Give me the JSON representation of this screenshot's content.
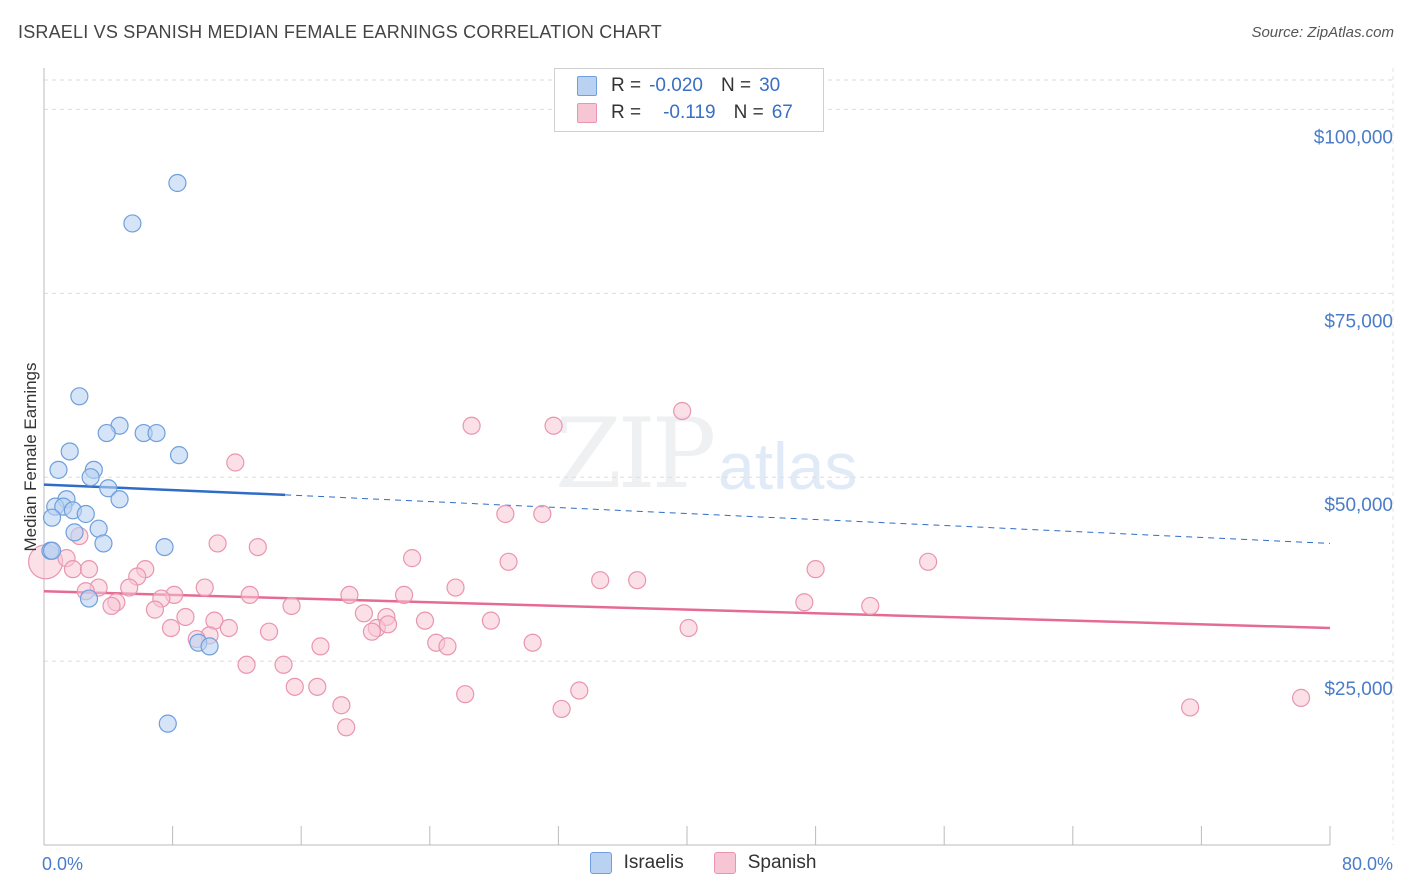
{
  "header": {
    "title": "ISRAELI VS SPANISH MEDIAN FEMALE EARNINGS CORRELATION CHART",
    "source": "Source: ZipAtlas.com"
  },
  "watermark": {
    "zip": "ZIP",
    "atlas": "atlas"
  },
  "legend": {
    "rows": [
      {
        "r_label": "R =",
        "r_value": "-0.020",
        "n_label": "N =",
        "n_value": "30"
      },
      {
        "r_label": "R =",
        "r_value": "-0.119",
        "n_label": "N =",
        "n_value": "67"
      }
    ]
  },
  "bottom_legend": {
    "israelis": "Israelis",
    "spanish": "Spanish"
  },
  "colors": {
    "israelis_fill": "#b9d2f2",
    "israelis_stroke": "#6f9fdc",
    "israelis_line": "#2f6cc8",
    "spanish_fill": "#f7c6d5",
    "spanish_stroke": "#e995b0",
    "spanish_line": "#e56b93",
    "axis_text": "#4a7cc7"
  },
  "chart_data": {
    "type": "scatter",
    "title": "ISRAELI VS SPANISH MEDIAN FEMALE EARNINGS CORRELATION CHART",
    "xlabel": "",
    "ylabel": "Median Female Earnings",
    "xlim": [
      0,
      80
    ],
    "ylim": [
      0,
      105000
    ],
    "x_tick_labels": {
      "min": "0.0%",
      "max": "80.0%"
    },
    "y_ticks": [
      {
        "value": 25000,
        "label": "$25,000"
      },
      {
        "value": 50000,
        "label": "$50,000"
      },
      {
        "value": 75000,
        "label": "$75,000"
      },
      {
        "value": 100000,
        "label": "$100,000"
      }
    ],
    "series": [
      {
        "name": "Israelis",
        "r": -0.02,
        "n": 30,
        "trend": {
          "x0": 0,
          "y0": 49000,
          "x1": 15,
          "y1": 47600,
          "dash_to_x": 80,
          "dash_to_y": 41000
        },
        "points": [
          [
            8.3,
            90000
          ],
          [
            5.5,
            84500
          ],
          [
            2.2,
            61000
          ],
          [
            4.7,
            57000
          ],
          [
            3.9,
            56000
          ],
          [
            6.2,
            56000
          ],
          [
            7.0,
            56000
          ],
          [
            1.6,
            53500
          ],
          [
            8.4,
            53000
          ],
          [
            0.9,
            51000
          ],
          [
            3.1,
            51000
          ],
          [
            2.9,
            50000
          ],
          [
            4.0,
            48500
          ],
          [
            4.7,
            47000
          ],
          [
            1.4,
            47000
          ],
          [
            0.7,
            46000
          ],
          [
            1.2,
            46000
          ],
          [
            1.8,
            45500
          ],
          [
            2.6,
            45000
          ],
          [
            0.5,
            44500
          ],
          [
            3.4,
            43000
          ],
          [
            1.9,
            42500
          ],
          [
            3.7,
            41000
          ],
          [
            7.5,
            40500
          ],
          [
            0.4,
            40000
          ],
          [
            2.8,
            33500
          ],
          [
            9.6,
            27500
          ],
          [
            10.3,
            27000
          ],
          [
            7.7,
            16500
          ],
          [
            0.5,
            40000
          ]
        ]
      },
      {
        "name": "Spanish",
        "r": -0.119,
        "n": 67,
        "trend": {
          "x0": 0,
          "y0": 34500,
          "x1": 80,
          "y1": 29500
        },
        "points": [
          [
            0.1,
            38500
          ],
          [
            39.7,
            59000
          ],
          [
            26.6,
            57000
          ],
          [
            31.7,
            57000
          ],
          [
            11.9,
            52000
          ],
          [
            2.2,
            42000
          ],
          [
            10.8,
            41000
          ],
          [
            13.3,
            40500
          ],
          [
            28.7,
            45000
          ],
          [
            31.0,
            45000
          ],
          [
            1.4,
            39000
          ],
          [
            22.9,
            39000
          ],
          [
            28.9,
            38500
          ],
          [
            55.0,
            38500
          ],
          [
            1.8,
            37500
          ],
          [
            2.8,
            37500
          ],
          [
            6.3,
            37500
          ],
          [
            48.0,
            37500
          ],
          [
            5.8,
            36500
          ],
          [
            34.6,
            36000
          ],
          [
            36.9,
            36000
          ],
          [
            3.4,
            35000
          ],
          [
            5.3,
            35000
          ],
          [
            10.0,
            35000
          ],
          [
            25.6,
            35000
          ],
          [
            2.6,
            34500
          ],
          [
            8.1,
            34000
          ],
          [
            12.8,
            34000
          ],
          [
            19.0,
            34000
          ],
          [
            22.4,
            34000
          ],
          [
            7.3,
            33500
          ],
          [
            4.5,
            33000
          ],
          [
            47.3,
            33000
          ],
          [
            51.4,
            32500
          ],
          [
            4.2,
            32500
          ],
          [
            6.9,
            32000
          ],
          [
            15.4,
            32500
          ],
          [
            19.9,
            31500
          ],
          [
            8.8,
            31000
          ],
          [
            21.3,
            31000
          ],
          [
            10.6,
            30500
          ],
          [
            23.7,
            30500
          ],
          [
            27.8,
            30500
          ],
          [
            7.9,
            29500
          ],
          [
            11.5,
            29500
          ],
          [
            20.7,
            29500
          ],
          [
            40.1,
            29500
          ],
          [
            14.0,
            29000
          ],
          [
            20.4,
            29000
          ],
          [
            10.3,
            28500
          ],
          [
            9.5,
            28000
          ],
          [
            30.4,
            27500
          ],
          [
            24.4,
            27500
          ],
          [
            25.1,
            27000
          ],
          [
            17.2,
            27000
          ],
          [
            12.6,
            24500
          ],
          [
            14.9,
            24500
          ],
          [
            15.6,
            21500
          ],
          [
            17.0,
            21500
          ],
          [
            26.2,
            20500
          ],
          [
            33.3,
            21000
          ],
          [
            18.5,
            19000
          ],
          [
            32.2,
            18500
          ],
          [
            18.8,
            16000
          ],
          [
            71.3,
            18700
          ],
          [
            78.2,
            20000
          ],
          [
            21.4,
            30000
          ]
        ]
      }
    ]
  }
}
